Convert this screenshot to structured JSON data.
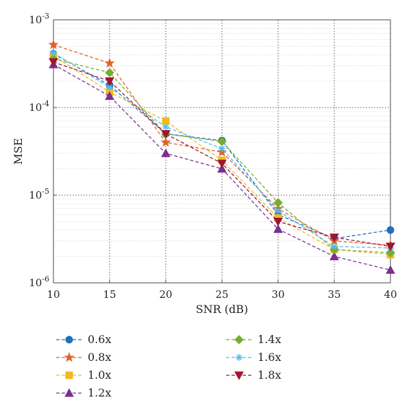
{
  "chart_data": {
    "type": "line",
    "xlabel": "SNR (dB)",
    "ylabel": "MSE",
    "xlim": [
      10,
      40
    ],
    "ylim": [
      1e-06,
      0.001
    ],
    "yscale": "log",
    "x_ticks": [
      "10",
      "15",
      "20",
      "25",
      "30",
      "35",
      "40"
    ],
    "y_ticks": [
      {
        "base": "10",
        "exp": "-6"
      },
      {
        "base": "10",
        "exp": "-5"
      },
      {
        "base": "10",
        "exp": "-4"
      },
      {
        "base": "10",
        "exp": "-3"
      }
    ],
    "grid": true,
    "legend_position": "bottom",
    "x": [
      10,
      15,
      20,
      25,
      30,
      35,
      40
    ],
    "series": [
      {
        "name": "0.6x",
        "color": "#1f6fbf",
        "marker": "circle",
        "values": [
          0.00041,
          0.00018,
          5e-05,
          4.2e-05,
          6e-06,
          3.2e-06,
          4e-06
        ]
      },
      {
        "name": "0.8x",
        "color": "#e0622a",
        "marker": "star",
        "values": [
          0.00052,
          0.00032,
          4e-05,
          3.1e-05,
          7e-06,
          3e-06,
          2.7e-06
        ]
      },
      {
        "name": "1.0x",
        "color": "#f2b91e",
        "marker": "square",
        "values": [
          0.00039,
          0.00015,
          7e-05,
          2.5e-05,
          5.5e-06,
          2.4e-06,
          2.1e-06
        ]
      },
      {
        "name": "1.2x",
        "color": "#7b2f8e",
        "marker": "triangle",
        "values": [
          0.00031,
          0.000135,
          3e-05,
          2e-05,
          4.1e-06,
          2e-06,
          1.4e-06
        ]
      },
      {
        "name": "1.4x",
        "color": "#77ac30",
        "marker": "diamond",
        "values": [
          0.00036,
          0.00025,
          5e-05,
          4.1e-05,
          8.2e-06,
          2.4e-06,
          2.2e-06
        ]
      },
      {
        "name": "1.6x",
        "color": "#4dbeee",
        "marker": "asterisk",
        "values": [
          0.00042,
          0.00017,
          6e-05,
          3.4e-05,
          6.6e-06,
          2.6e-06,
          2.5e-06
        ]
      },
      {
        "name": "1.8x",
        "color": "#a2142f",
        "marker": "triangle-down",
        "values": [
          0.00033,
          0.0002,
          5e-05,
          2.3e-05,
          5e-06,
          3.3e-06,
          2.6e-06
        ]
      }
    ]
  }
}
